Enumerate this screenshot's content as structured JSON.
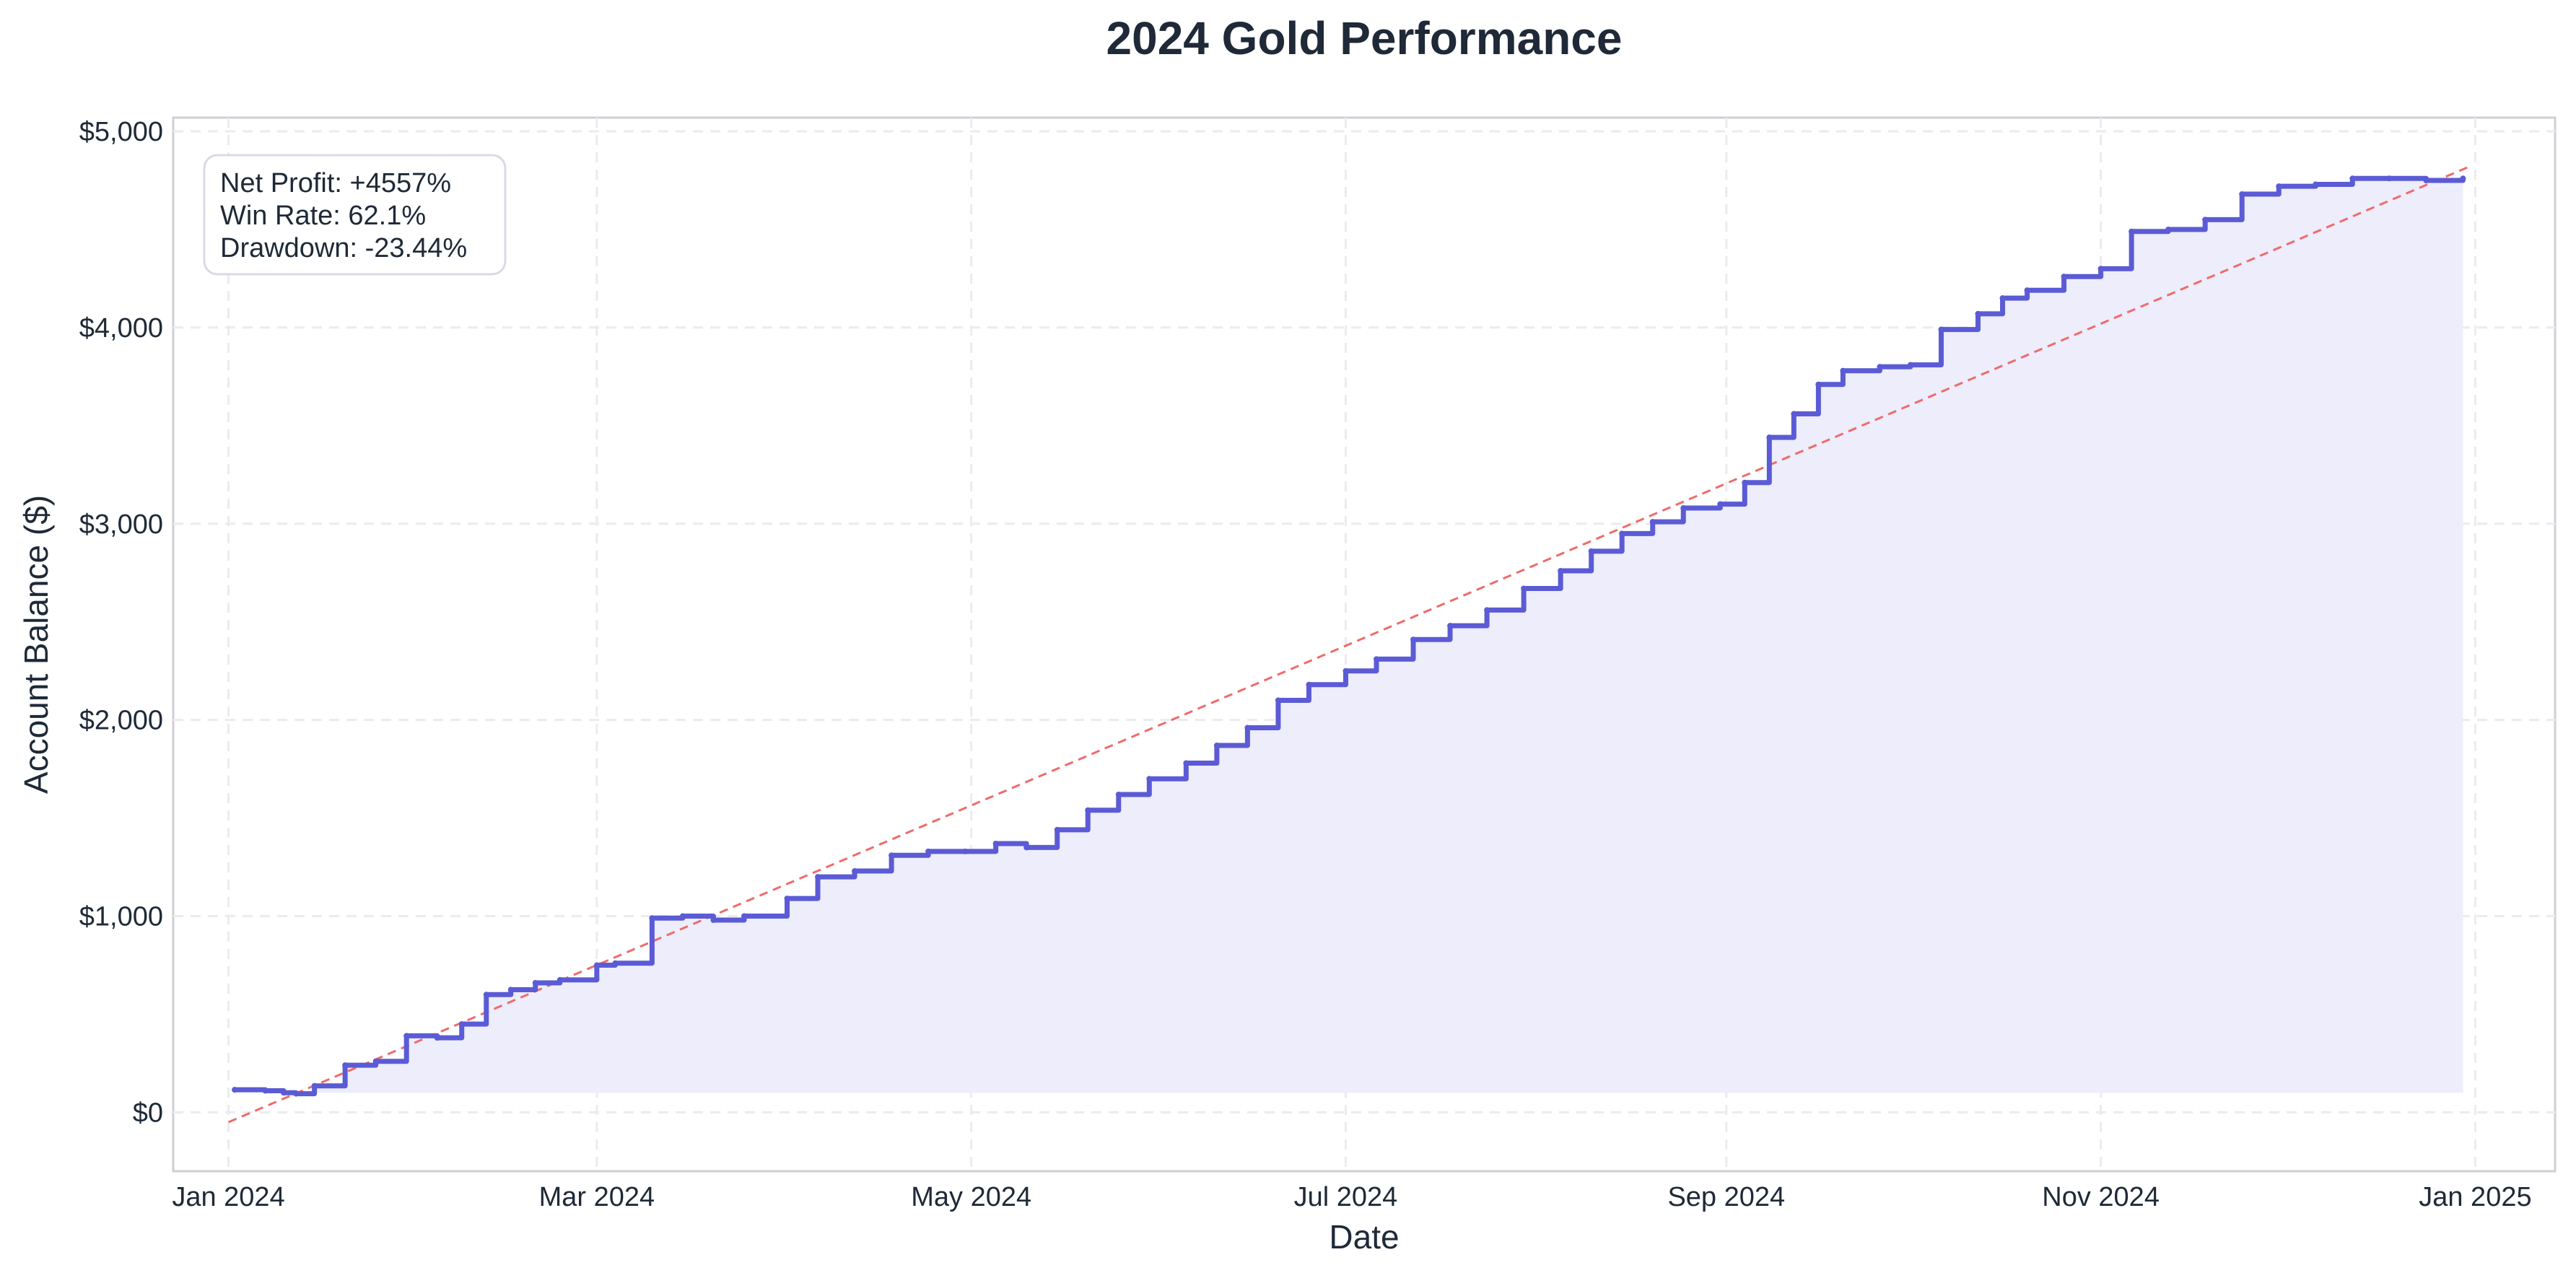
{
  "chart_data": {
    "type": "area",
    "title": "2024 Gold Performance",
    "xlabel": "Date",
    "ylabel": "Account Balance ($)",
    "xlim": [
      "2023-12-23",
      "2025-01-14"
    ],
    "ylim": [
      -300,
      5070
    ],
    "grid": true,
    "x_ticks": [
      {
        "date": "2024-01-01",
        "label": "Jan 2024"
      },
      {
        "date": "2024-03-01",
        "label": "Mar 2024"
      },
      {
        "date": "2024-05-01",
        "label": "May 2024"
      },
      {
        "date": "2024-07-01",
        "label": "Jul 2024"
      },
      {
        "date": "2024-09-01",
        "label": "Sep 2024"
      },
      {
        "date": "2024-11-01",
        "label": "Nov 2024"
      },
      {
        "date": "2025-01-01",
        "label": "Jan 2025"
      }
    ],
    "y_ticks": [
      {
        "value": 0,
        "label": "$0"
      },
      {
        "value": 1000,
        "label": "$1,000"
      },
      {
        "value": 2000,
        "label": "$2,000"
      },
      {
        "value": 3000,
        "label": "$3,000"
      },
      {
        "value": 4000,
        "label": "$4,000"
      },
      {
        "value": 5000,
        "label": "$5,000"
      }
    ],
    "area_baseline": 100,
    "series": [
      {
        "role": "balance",
        "color": "#5b5bd6",
        "fill": "#ededfb",
        "x": [
          "2024-01-02",
          "2024-01-07",
          "2024-01-10",
          "2024-01-12",
          "2024-01-15",
          "2024-01-20",
          "2024-01-25",
          "2024-01-30",
          "2024-02-04",
          "2024-02-08",
          "2024-02-12",
          "2024-02-16",
          "2024-02-20",
          "2024-02-24",
          "2024-03-01",
          "2024-03-04",
          "2024-03-10",
          "2024-03-15",
          "2024-03-20",
          "2024-03-25",
          "2024-04-01",
          "2024-04-06",
          "2024-04-12",
          "2024-04-18",
          "2024-04-24",
          "2024-04-30",
          "2024-05-05",
          "2024-05-10",
          "2024-05-15",
          "2024-05-20",
          "2024-05-25",
          "2024-05-30",
          "2024-06-05",
          "2024-06-10",
          "2024-06-15",
          "2024-06-20",
          "2024-06-25",
          "2024-07-01",
          "2024-07-06",
          "2024-07-12",
          "2024-07-18",
          "2024-07-24",
          "2024-07-30",
          "2024-08-05",
          "2024-08-10",
          "2024-08-15",
          "2024-08-20",
          "2024-08-25",
          "2024-08-31",
          "2024-09-04",
          "2024-09-08",
          "2024-09-12",
          "2024-09-16",
          "2024-09-20",
          "2024-09-26",
          "2024-10-01",
          "2024-10-06",
          "2024-10-12",
          "2024-10-16",
          "2024-10-20",
          "2024-10-26",
          "2024-11-01",
          "2024-11-06",
          "2024-11-12",
          "2024-11-18",
          "2024-11-24",
          "2024-11-30",
          "2024-12-06",
          "2024-12-12",
          "2024-12-18",
          "2024-12-24",
          "2024-12-30"
        ],
        "y": [
          115,
          110,
          100,
          95,
          135,
          240,
          260,
          390,
          380,
          450,
          600,
          625,
          660,
          675,
          750,
          760,
          990,
          1000,
          980,
          1000,
          1090,
          1200,
          1230,
          1310,
          1330,
          1330,
          1370,
          1350,
          1440,
          1540,
          1620,
          1700,
          1780,
          1870,
          1960,
          2100,
          2180,
          2250,
          2310,
          2410,
          2480,
          2560,
          2670,
          2760,
          2860,
          2950,
          3010,
          3080,
          3100,
          3210,
          3440,
          3560,
          3710,
          3780,
          3800,
          3810,
          3990,
          4070,
          4150,
          4190,
          4260,
          4300,
          4490,
          4500,
          4550,
          4680,
          4720,
          4730,
          4760,
          4760,
          4750,
          4760
        ]
      },
      {
        "role": "trend",
        "color": "#ef6b6b",
        "line_style": "dashed",
        "x": [
          "2024-01-01",
          "2024-12-31"
        ],
        "y": [
          -50,
          4820
        ]
      }
    ],
    "annotations": [
      "Net Profit: +4557%",
      "Win Rate: 62.1%",
      "Drawdown: -23.44%"
    ]
  }
}
